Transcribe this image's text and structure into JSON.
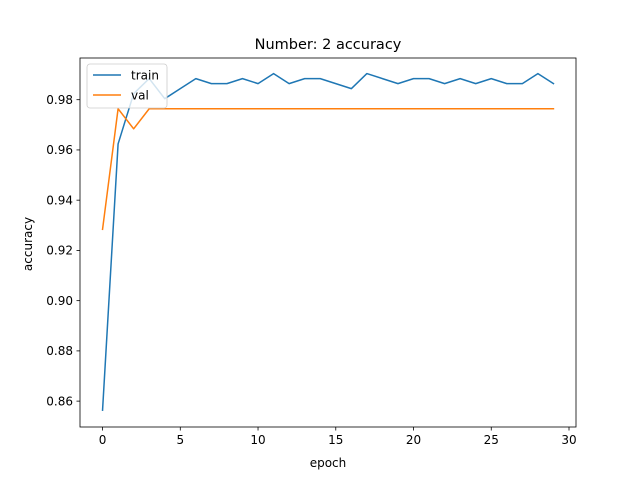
{
  "chart_data": {
    "type": "line",
    "title": "Number: 2 accuracy",
    "xlabel": "epoch",
    "ylabel": "accuracy",
    "xlim": [
      -1.45,
      30.45
    ],
    "ylim": [
      0.8497,
      0.9966
    ],
    "xticks": [
      0,
      5,
      10,
      15,
      20,
      25,
      30
    ],
    "yticks": [
      0.86,
      0.88,
      0.9,
      0.92,
      0.94,
      0.96,
      0.98
    ],
    "ytick_labels": [
      "0.86",
      "0.88",
      "0.90",
      "0.92",
      "0.94",
      "0.96",
      "0.98"
    ],
    "grid": false,
    "legend_position": "upper-left",
    "x": [
      0,
      1,
      2,
      3,
      4,
      5,
      6,
      7,
      8,
      9,
      10,
      11,
      12,
      13,
      14,
      15,
      16,
      17,
      18,
      19,
      20,
      21,
      22,
      23,
      24,
      25,
      26,
      27,
      28,
      29
    ],
    "series": [
      {
        "name": "train",
        "color": "#1f77b4",
        "values": [
          0.8564,
          0.9624,
          0.9824,
          0.9884,
          0.9804,
          0.9844,
          0.9884,
          0.9864,
          0.9864,
          0.9884,
          0.9864,
          0.9904,
          0.9864,
          0.9884,
          0.9884,
          0.9864,
          0.9844,
          0.9904,
          0.9884,
          0.9864,
          0.9884,
          0.9884,
          0.9864,
          0.9884,
          0.9864,
          0.9884,
          0.9864,
          0.9864,
          0.9904,
          0.9864
        ]
      },
      {
        "name": "val",
        "color": "#ff7f0e",
        "values": [
          0.9284,
          0.9764,
          0.9684,
          0.9764,
          0.9764,
          0.9764,
          0.9764,
          0.9764,
          0.9764,
          0.9764,
          0.9764,
          0.9764,
          0.9764,
          0.9764,
          0.9764,
          0.9764,
          0.9764,
          0.9764,
          0.9764,
          0.9764,
          0.9764,
          0.9764,
          0.9764,
          0.9764,
          0.9764,
          0.9764,
          0.9764,
          0.9764,
          0.9764,
          0.9764
        ]
      }
    ]
  }
}
